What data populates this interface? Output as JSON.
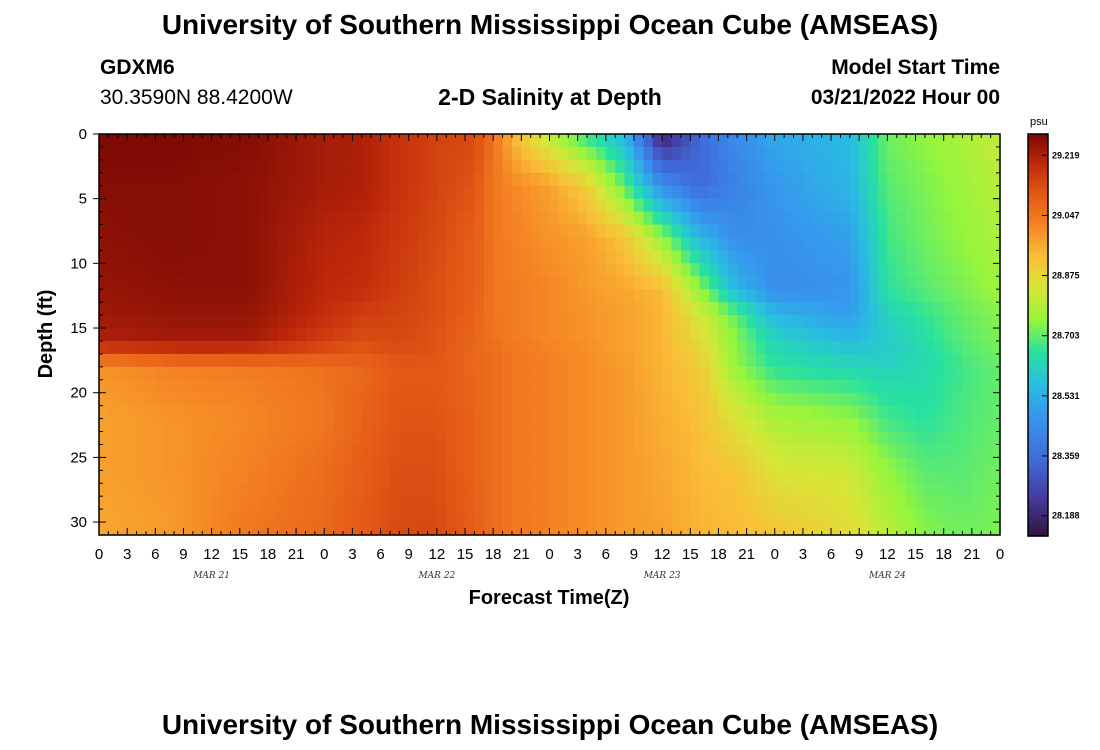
{
  "header": {
    "title": "University of Southern Mississippi Ocean Cube (AMSEAS)",
    "station_id": "GDXM6",
    "station_coords": "30.3590N  88.4200W",
    "plot_title": "2-D Salinity at Depth",
    "start_label": "Model Start Time",
    "start_value": "03/21/2022 Hour 00"
  },
  "footer": {
    "title": "University of Southern Mississippi Ocean Cube (AMSEAS)"
  },
  "chart_data": {
    "type": "heatmap",
    "title": "2-D Salinity at Depth",
    "xlabel": "Forecast Time(Z)",
    "ylabel": "Depth (ft)",
    "x_unit": "forecast hour",
    "xlim": [
      0,
      96
    ],
    "ylim": [
      0,
      31
    ],
    "y_inverted": true,
    "x_tick_labels": [
      "0",
      "3",
      "6",
      "9",
      "12",
      "15",
      "18",
      "21",
      "0",
      "3",
      "6",
      "9",
      "12",
      "15",
      "18",
      "21",
      "0",
      "3",
      "6",
      "9",
      "12",
      "15",
      "18",
      "21",
      "0",
      "3",
      "6",
      "9",
      "12",
      "15",
      "18",
      "21",
      "0"
    ],
    "x_date_labels": [
      {
        "label": "MAR 21",
        "hour": 12
      },
      {
        "label": "MAR 22",
        "hour": 36
      },
      {
        "label": "MAR 23",
        "hour": 60
      },
      {
        "label": "MAR 24",
        "hour": 84
      }
    ],
    "y_ticks": [
      0,
      5,
      10,
      15,
      20,
      25,
      30
    ],
    "colorbar": {
      "unit": "psu",
      "min": 28.13,
      "max": 29.28,
      "tick_values": [
        29.219,
        29.047,
        28.875,
        28.703,
        28.531,
        28.359,
        28.188
      ],
      "tick_labels": [
        "29.219",
        "29.047",
        "28.875",
        "28.703",
        "28.531",
        "28.359",
        "28.188"
      ]
    },
    "salinity_keyframes": {
      "hours": [
        0,
        8,
        16,
        24,
        28,
        32,
        36,
        40,
        42,
        44,
        48,
        52,
        56,
        60,
        64,
        68,
        72,
        80,
        84,
        88,
        92,
        96
      ],
      "depths": [
        0,
        4,
        8,
        12,
        14,
        16,
        17,
        18,
        22,
        26,
        31
      ],
      "values": [
        [
          29.28,
          29.28,
          29.27,
          29.23,
          29.22,
          29.18,
          29.15,
          29.14,
          29.06,
          28.95,
          28.8,
          28.66,
          28.55,
          28.17,
          28.35,
          28.45,
          28.52,
          28.56,
          28.72,
          28.75,
          28.78,
          28.82
        ],
        [
          29.27,
          29.27,
          29.26,
          29.23,
          29.22,
          29.18,
          29.15,
          29.12,
          29.05,
          29.02,
          28.98,
          28.9,
          28.7,
          28.45,
          28.35,
          28.42,
          28.48,
          28.55,
          28.7,
          28.73,
          28.76,
          28.8
        ],
        [
          29.26,
          29.27,
          29.26,
          29.21,
          29.2,
          29.17,
          29.14,
          29.1,
          29.05,
          29.03,
          29.0,
          28.98,
          28.92,
          28.75,
          28.55,
          28.45,
          28.46,
          28.5,
          28.68,
          28.72,
          28.75,
          28.78
        ],
        [
          29.25,
          29.26,
          29.26,
          29.2,
          29.19,
          29.16,
          29.13,
          29.1,
          29.05,
          29.04,
          29.02,
          28.99,
          28.97,
          28.94,
          28.75,
          28.55,
          28.45,
          28.47,
          28.66,
          28.7,
          28.73,
          28.76
        ],
        [
          29.24,
          29.25,
          29.25,
          29.19,
          29.16,
          29.15,
          29.13,
          29.09,
          29.05,
          29.04,
          29.02,
          29.0,
          28.98,
          28.95,
          28.84,
          28.7,
          28.55,
          28.49,
          28.62,
          28.67,
          28.71,
          28.74
        ],
        [
          29.22,
          29.23,
          29.23,
          29.16,
          29.13,
          29.14,
          29.12,
          29.08,
          29.06,
          29.04,
          29.02,
          29.0,
          28.98,
          28.95,
          28.87,
          28.74,
          28.62,
          28.56,
          28.6,
          28.65,
          28.7,
          28.73
        ],
        [
          29.12,
          29.15,
          29.15,
          29.12,
          29.11,
          29.13,
          29.12,
          29.08,
          29.07,
          29.05,
          29.03,
          29.01,
          28.98,
          28.95,
          28.89,
          28.74,
          28.64,
          28.6,
          28.6,
          28.64,
          28.69,
          28.72
        ],
        [
          29.0,
          29.03,
          29.04,
          29.06,
          29.08,
          29.11,
          29.11,
          29.08,
          29.07,
          29.05,
          29.03,
          29.01,
          28.99,
          28.95,
          28.91,
          28.75,
          28.66,
          28.63,
          28.62,
          28.64,
          28.68,
          28.71
        ],
        [
          28.98,
          29.0,
          29.02,
          29.05,
          29.09,
          29.12,
          29.12,
          29.09,
          29.07,
          29.05,
          29.03,
          29.01,
          28.99,
          28.96,
          28.93,
          28.85,
          28.78,
          28.75,
          28.68,
          28.66,
          28.69,
          28.71
        ],
        [
          28.98,
          29.0,
          29.03,
          29.07,
          29.1,
          29.13,
          29.13,
          29.09,
          29.07,
          29.05,
          29.03,
          29.01,
          28.99,
          28.97,
          28.94,
          28.92,
          28.85,
          28.83,
          28.75,
          28.7,
          28.7,
          28.72
        ],
        [
          28.97,
          28.99,
          29.05,
          29.08,
          29.11,
          29.14,
          29.14,
          29.1,
          29.07,
          29.05,
          29.03,
          29.01,
          28.99,
          28.98,
          28.95,
          28.94,
          28.92,
          28.87,
          28.8,
          28.74,
          28.72,
          28.73
        ]
      ]
    }
  }
}
